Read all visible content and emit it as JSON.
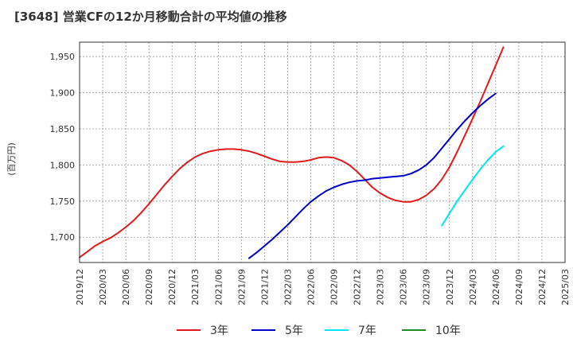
{
  "title": "[3648]  営業CFの12か月移動合計の平均値の推移",
  "chart_data": {
    "type": "line",
    "title": "[3648]  営業CFの12か月移動合計の平均値の推移",
    "ylabel": "(百万円)",
    "xlabel": "",
    "ylim": [
      1665,
      1970
    ],
    "yticks": [
      1700,
      1750,
      1800,
      1850,
      1900,
      1950
    ],
    "ytick_labels": [
      "1,700",
      "1,750",
      "1,800",
      "1,850",
      "1,900",
      "1,950"
    ],
    "xticks": [
      "2019/12",
      "2020/03",
      "2020/06",
      "2020/09",
      "2020/12",
      "2021/03",
      "2021/06",
      "2021/09",
      "2021/12",
      "2022/03",
      "2022/06",
      "2022/09",
      "2022/12",
      "2023/03",
      "2023/06",
      "2023/09",
      "2023/12",
      "2024/03",
      "2024/06",
      "2024/09",
      "2024/12",
      "2025/03"
    ],
    "grid": true,
    "legend_position": "bottom",
    "series": [
      {
        "name": "3年",
        "color": "#e31a1c",
        "points": [
          [
            "2019/12",
            1672
          ],
          [
            "2020/01",
            1680
          ],
          [
            "2020/02",
            1688
          ],
          [
            "2020/03",
            1694
          ],
          [
            "2020/04",
            1699
          ],
          [
            "2020/05",
            1706
          ],
          [
            "2020/06",
            1714
          ],
          [
            "2020/07",
            1723
          ],
          [
            "2020/08",
            1734
          ],
          [
            "2020/09",
            1746
          ],
          [
            "2020/10",
            1759
          ],
          [
            "2020/11",
            1772
          ],
          [
            "2020/12",
            1784
          ],
          [
            "2021/01",
            1795
          ],
          [
            "2021/02",
            1804
          ],
          [
            "2021/03",
            1811
          ],
          [
            "2021/04",
            1816
          ],
          [
            "2021/05",
            1819
          ],
          [
            "2021/06",
            1821
          ],
          [
            "2021/07",
            1822
          ],
          [
            "2021/08",
            1822
          ],
          [
            "2021/09",
            1821
          ],
          [
            "2021/10",
            1819
          ],
          [
            "2021/11",
            1816
          ],
          [
            "2021/12",
            1812
          ],
          [
            "2022/01",
            1808
          ],
          [
            "2022/02",
            1805
          ],
          [
            "2022/03",
            1804
          ],
          [
            "2022/04",
            1804
          ],
          [
            "2022/05",
            1805
          ],
          [
            "2022/06",
            1807
          ],
          [
            "2022/07",
            1810
          ],
          [
            "2022/08",
            1811
          ],
          [
            "2022/09",
            1810
          ],
          [
            "2022/10",
            1806
          ],
          [
            "2022/11",
            1800
          ],
          [
            "2022/12",
            1791
          ],
          [
            "2023/01",
            1780
          ],
          [
            "2023/02",
            1769
          ],
          [
            "2023/03",
            1761
          ],
          [
            "2023/04",
            1755
          ],
          [
            "2023/05",
            1751
          ],
          [
            "2023/06",
            1749
          ],
          [
            "2023/07",
            1749
          ],
          [
            "2023/08",
            1752
          ],
          [
            "2023/09",
            1758
          ],
          [
            "2023/10",
            1767
          ],
          [
            "2023/11",
            1780
          ],
          [
            "2023/12",
            1797
          ],
          [
            "2024/01",
            1818
          ],
          [
            "2024/02",
            1841
          ],
          [
            "2024/03",
            1864
          ],
          [
            "2024/04",
            1888
          ],
          [
            "2024/05",
            1913
          ],
          [
            "2024/06",
            1938
          ],
          [
            "2024/07",
            1963
          ]
        ]
      },
      {
        "name": "5年",
        "color": "#0000cd",
        "points": [
          [
            "2021/10",
            1671
          ],
          [
            "2021/11",
            1679
          ],
          [
            "2021/12",
            1688
          ],
          [
            "2022/01",
            1697
          ],
          [
            "2022/02",
            1707
          ],
          [
            "2022/03",
            1717
          ],
          [
            "2022/04",
            1728
          ],
          [
            "2022/05",
            1739
          ],
          [
            "2022/06",
            1749
          ],
          [
            "2022/07",
            1757
          ],
          [
            "2022/08",
            1764
          ],
          [
            "2022/09",
            1769
          ],
          [
            "2022/10",
            1773
          ],
          [
            "2022/11",
            1776
          ],
          [
            "2022/12",
            1778
          ],
          [
            "2023/01",
            1779
          ],
          [
            "2023/02",
            1781
          ],
          [
            "2023/03",
            1782
          ],
          [
            "2023/04",
            1783
          ],
          [
            "2023/05",
            1784
          ],
          [
            "2023/06",
            1785
          ],
          [
            "2023/07",
            1788
          ],
          [
            "2023/08",
            1793
          ],
          [
            "2023/09",
            1800
          ],
          [
            "2023/10",
            1810
          ],
          [
            "2023/11",
            1823
          ],
          [
            "2023/12",
            1836
          ],
          [
            "2024/01",
            1849
          ],
          [
            "2024/02",
            1861
          ],
          [
            "2024/03",
            1872
          ],
          [
            "2024/04",
            1882
          ],
          [
            "2024/05",
            1891
          ],
          [
            "2024/06",
            1899
          ]
        ]
      },
      {
        "name": "7年",
        "color": "#00e5ee",
        "points": [
          [
            "2023/11",
            1716
          ],
          [
            "2023/12",
            1733
          ],
          [
            "2024/01",
            1750
          ],
          [
            "2024/02",
            1765
          ],
          [
            "2024/03",
            1780
          ],
          [
            "2024/04",
            1794
          ],
          [
            "2024/05",
            1807
          ],
          [
            "2024/06",
            1818
          ],
          [
            "2024/07",
            1826
          ]
        ]
      },
      {
        "name": "10年",
        "color": "#228b22",
        "points": []
      }
    ]
  }
}
